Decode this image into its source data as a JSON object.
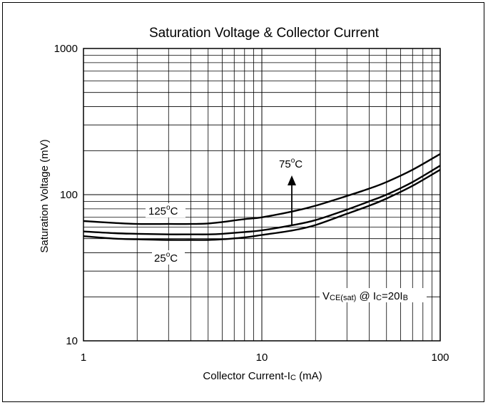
{
  "chart_data": {
    "type": "line",
    "title": "Saturation Voltage & Collector Current",
    "xlabel": {
      "main": "Collector Current-I",
      "sub": "C",
      "unit": " (mA)"
    },
    "ylabel": "Saturation Voltage (mV)",
    "xscale": "log",
    "yscale": "log",
    "xlim": [
      1,
      100
    ],
    "ylim": [
      10,
      1000
    ],
    "grid": true,
    "x_ticks": [
      {
        "value": 1,
        "label": "1"
      },
      {
        "value": 10,
        "label": "10"
      },
      {
        "value": 100,
        "label": "100"
      }
    ],
    "y_ticks": [
      {
        "value": 10,
        "label": "10"
      },
      {
        "value": 100,
        "label": "100"
      },
      {
        "value": 1000,
        "label": "1000"
      }
    ],
    "series": [
      {
        "name": "125°C",
        "x": [
          1,
          1.5,
          2,
          3,
          4,
          5,
          6,
          8,
          10,
          15,
          20,
          30,
          40,
          50,
          70,
          100
        ],
        "y": [
          66,
          64,
          63,
          63,
          63,
          63.5,
          65,
          68,
          70,
          77,
          84,
          98,
          110,
          122,
          148,
          190
        ]
      },
      {
        "name": "75°C",
        "x": [
          1,
          1.5,
          2,
          3,
          4,
          5,
          6,
          8,
          10,
          15,
          20,
          30,
          40,
          50,
          70,
          100
        ],
        "y": [
          56,
          54.5,
          54,
          53.5,
          53.5,
          53.5,
          54,
          55.5,
          57,
          62,
          67,
          79,
          90,
          100,
          122,
          158
        ]
      },
      {
        "name": "25°C",
        "x": [
          1,
          1.5,
          2,
          3,
          4,
          5,
          6,
          8,
          10,
          15,
          20,
          30,
          40,
          50,
          70,
          100
        ],
        "y": [
          52,
          50,
          49.5,
          49,
          49,
          49,
          49.5,
          51,
          53,
          57,
          62,
          74,
          84,
          94,
          115,
          148
        ]
      }
    ],
    "annotations": {
      "t125": {
        "main": "125",
        "sup": "o",
        "unit": "C"
      },
      "t75": {
        "main": "75",
        "sup": "o",
        "unit": "C"
      },
      "t25": {
        "main": "25",
        "sup": "o",
        "unit": "C"
      },
      "condition": {
        "v": "V",
        "vsub": "CE(sat)",
        "at": " @ I",
        "isub": "C",
        "eq": "=20I",
        "bsub": "B"
      }
    }
  }
}
